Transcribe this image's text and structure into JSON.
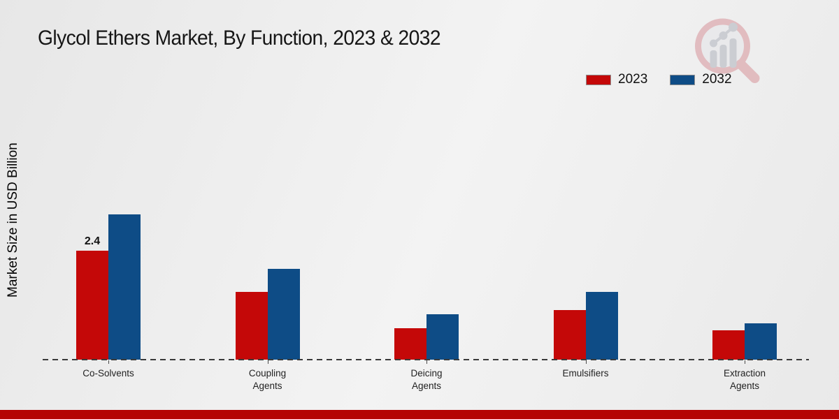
{
  "page": {
    "title": "Glycol Ethers Market, By Function, 2023 & 2032",
    "ylabel": "Market Size in USD Billion"
  },
  "legend": {
    "position": "top-right",
    "items": [
      {
        "label": "2023",
        "color": "#c40808"
      },
      {
        "label": "2032",
        "color": "#0e4c86"
      }
    ]
  },
  "chart_data": {
    "type": "bar",
    "title": "Glycol Ethers Market, By Function, 2023 & 2032",
    "xlabel": "",
    "ylabel": "Market Size in USD Billion",
    "categories": [
      "Co-Solvents",
      "Coupling Agents",
      "Deicing Agents",
      "Emulsifiers",
      "Extraction Agents"
    ],
    "series": [
      {
        "name": "2023",
        "color": "#c40808",
        "values": [
          2.4,
          1.5,
          0.7,
          1.1,
          0.65
        ]
      },
      {
        "name": "2032",
        "color": "#0e4c86",
        "values": [
          3.2,
          2.0,
          1.0,
          1.5,
          0.8
        ]
      }
    ],
    "annotations": [
      {
        "series": "2023",
        "category": "Co-Solvents",
        "text": "2.4"
      }
    ],
    "ylim": [
      0,
      3.5
    ],
    "grid": false,
    "baseline_style": "dashed",
    "legend_position": "top-right"
  },
  "branding": {
    "logo_name": "market-research-magnifier-logo",
    "footer_bar_color": "#b50404"
  }
}
